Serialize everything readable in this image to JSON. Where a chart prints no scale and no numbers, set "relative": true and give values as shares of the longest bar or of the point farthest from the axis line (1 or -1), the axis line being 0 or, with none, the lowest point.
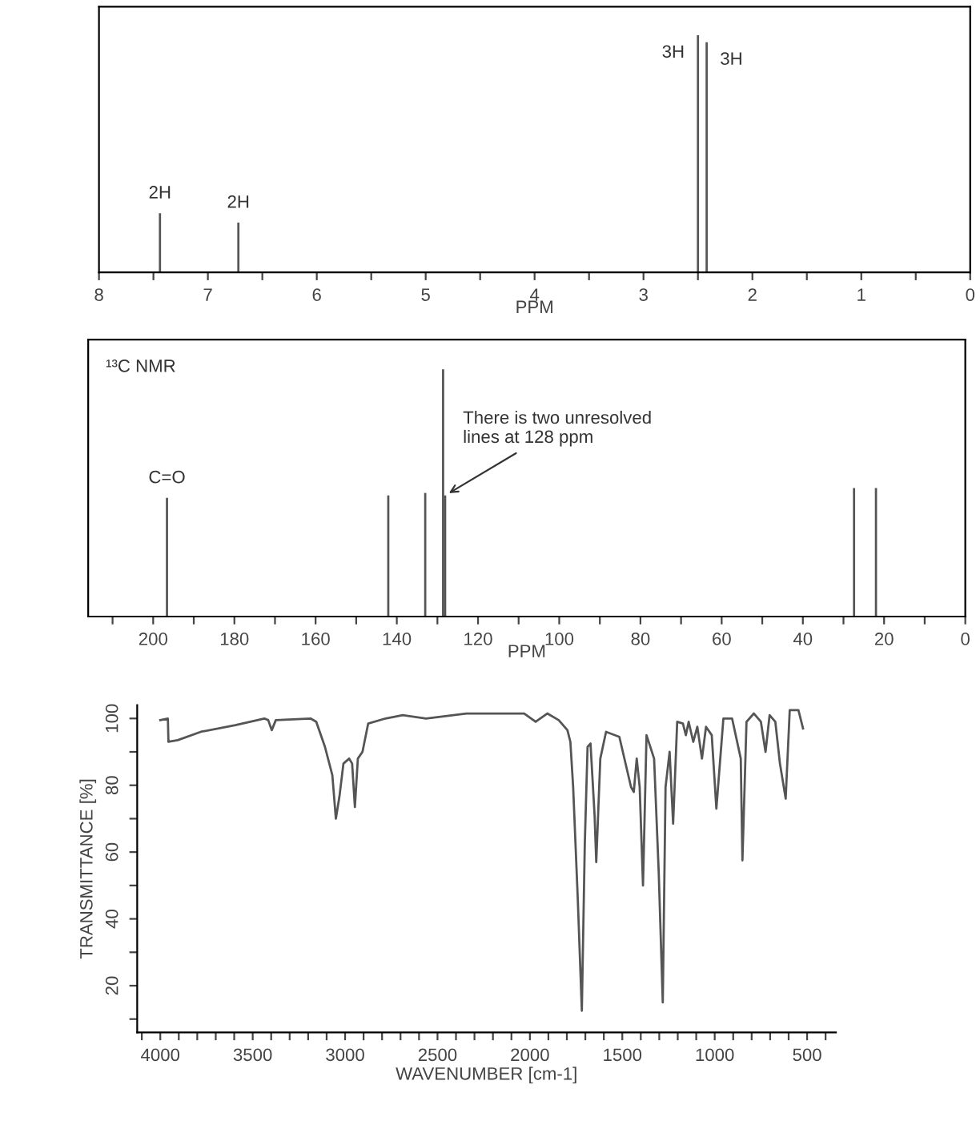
{
  "chart_data": [
    {
      "type": "bar",
      "relative": true,
      "xlabel": "PPM",
      "x": [
        7.44,
        6.72,
        2.5,
        2.42
      ],
      "xlim": [
        8,
        0
      ],
      "xticks": [
        8,
        {
          "value": 7.5,
          "label": null
        },
        7,
        {
          "value": 6.5,
          "label": null
        },
        6,
        {
          "value": 5.5,
          "label": null
        },
        5,
        {
          "value": 4.5,
          "label": null
        },
        4,
        {
          "value": 3.5,
          "label": null
        },
        3,
        {
          "value": 2.5,
          "label": null
        },
        2,
        {
          "value": 1.5,
          "label": null
        },
        1,
        {
          "value": 0.5,
          "label": null
        },
        0
      ],
      "series": [
        {
          "color": "#555555",
          "values": [
            0.25,
            0.21,
            1.0,
            0.97
          ]
        }
      ],
      "annotations": [
        {
          "text": "2H",
          "x": 7.44,
          "y": 0.25
        },
        {
          "text": "2H",
          "x": 6.72,
          "y": 0.21
        },
        {
          "text": "3H",
          "x": 2.5,
          "y": 1.0
        },
        {
          "text": "3H",
          "x": 2.42,
          "y": 0.97
        }
      ],
      "grid": false,
      "legend": false
    },
    {
      "type": "bar",
      "relative": true,
      "title": "¹³C NMR",
      "xlabel": "PPM",
      "x": [
        196.6,
        142.1,
        133.0,
        128.6,
        128.1,
        27.4,
        22.0
      ],
      "xlim": [
        216,
        0
      ],
      "xticks": [
        {
          "value": 210,
          "label": null
        },
        200,
        {
          "value": 190,
          "label": null
        },
        180,
        {
          "value": 170,
          "label": null
        },
        160,
        {
          "value": 150,
          "label": null
        },
        140,
        {
          "value": 130,
          "label": null
        },
        120,
        {
          "value": 110,
          "label": null
        },
        100,
        {
          "value": 90,
          "label": null
        },
        80,
        {
          "value": 70,
          "label": null
        },
        60,
        {
          "value": 50,
          "label": null
        },
        40,
        {
          "value": 30,
          "label": null
        },
        20,
        {
          "value": 10,
          "label": null
        },
        0
      ],
      "series": [
        {
          "color": "#555555",
          "values": [
            0.48,
            0.49,
            0.5,
            1.0,
            0.49,
            0.52,
            0.52
          ]
        }
      ],
      "annotations": [
        {
          "text": "C=O",
          "x": 196.6,
          "y": 0.48
        },
        {
          "text": "There is two unresolved\nlines at 128 ppm",
          "x": 128.1,
          "y": 0.49
        }
      ],
      "grid": false,
      "legend": false
    },
    {
      "type": "line",
      "xlabel": "WAVENUMBER [cm-1]",
      "ylabel": "TRANSMITTANCE [%]",
      "xlim": [
        4125,
        344
      ],
      "ylim": [
        6,
        104
      ],
      "xticks": [
        {
          "value": 4100,
          "label": null
        },
        4000,
        {
          "value": 3900,
          "label": null
        },
        {
          "value": 3800,
          "label": null
        },
        {
          "value": 3700,
          "label": null
        },
        {
          "value": 3600,
          "label": null
        },
        3500,
        {
          "value": 3400,
          "label": null
        },
        {
          "value": 3300,
          "label": null
        },
        {
          "value": 3200,
          "label": null
        },
        {
          "value": 3100,
          "label": null
        },
        3000,
        {
          "value": 2900,
          "label": null
        },
        {
          "value": 2800,
          "label": null
        },
        {
          "value": 2700,
          "label": null
        },
        {
          "value": 2600,
          "label": null
        },
        2500,
        {
          "value": 2400,
          "label": null
        },
        {
          "value": 2300,
          "label": null
        },
        {
          "value": 2200,
          "label": null
        },
        {
          "value": 2100,
          "label": null
        },
        2000,
        {
          "value": 1900,
          "label": null
        },
        {
          "value": 1800,
          "label": null
        },
        {
          "value": 1700,
          "label": null
        },
        {
          "value": 1600,
          "label": null
        },
        1500,
        {
          "value": 1400,
          "label": null
        },
        {
          "value": 1300,
          "label": null
        },
        {
          "value": 1200,
          "label": null
        },
        {
          "value": 1100,
          "label": null
        },
        1000,
        {
          "value": 900,
          "label": null
        },
        {
          "value": 800,
          "label": null
        },
        {
          "value": 700,
          "label": null
        },
        {
          "value": 600,
          "label": null
        },
        500,
        {
          "value": 400,
          "label": null
        }
      ],
      "yticks": [
        {
          "value": 10,
          "label": null
        },
        20,
        {
          "value": 30,
          "label": null
        },
        40,
        {
          "value": 50,
          "label": null
        },
        60,
        {
          "value": 70,
          "label": null
        },
        80,
        {
          "value": 90,
          "label": null
        },
        100
      ],
      "series": [
        {
          "color": "#555555",
          "x": [
            4000,
            3959,
            3956,
            3906,
            3781,
            3594,
            3437,
            3416,
            3397,
            3375,
            3187,
            3156,
            3109,
            3069,
            3050,
            3031,
            3009,
            2978,
            2962,
            2947,
            2931,
            2906,
            2875,
            2781,
            2688,
            2562,
            2344,
            2031,
            1969,
            1906,
            1844,
            1797,
            1781,
            1766,
            1741,
            1719,
            1703,
            1688,
            1672,
            1650,
            1641,
            1619,
            1588,
            1516,
            1453,
            1438,
            1422,
            1406,
            1388,
            1369,
            1328,
            1303,
            1281,
            1266,
            1244,
            1225,
            1203,
            1172,
            1156,
            1141,
            1116,
            1094,
            1069,
            1047,
            1016,
            991,
            953,
            906,
            859,
            850,
            828,
            788,
            750,
            725,
            703,
            672,
            647,
            616,
            594,
            547,
            522
          ],
          "values": [
            99.5,
            100,
            93,
            93.5,
            96,
            98,
            100,
            99.5,
            96.5,
            99.5,
            100,
            99,
            91.5,
            83,
            70,
            76.5,
            86.5,
            88,
            86.5,
            73.5,
            88,
            90,
            98.5,
            100,
            101,
            100,
            101.5,
            101.5,
            99,
            101.5,
            99.5,
            96.5,
            93,
            79.5,
            46,
            12.5,
            62.5,
            91.5,
            92.5,
            71,
            57,
            88,
            96,
            94.5,
            79.5,
            78,
            88,
            79.5,
            50,
            95,
            88,
            54,
            15,
            79.5,
            90,
            68.5,
            99,
            98.5,
            95,
            99,
            93,
            97.5,
            88,
            97.5,
            95,
            73,
            100,
            100,
            88,
            57.5,
            99,
            101.5,
            99,
            90,
            101,
            99,
            86.5,
            76,
            102.5,
            102.5,
            97
          ]
        }
      ],
      "grid": false,
      "legend": false,
      "marker": "none",
      "line_style": "solid"
    }
  ]
}
